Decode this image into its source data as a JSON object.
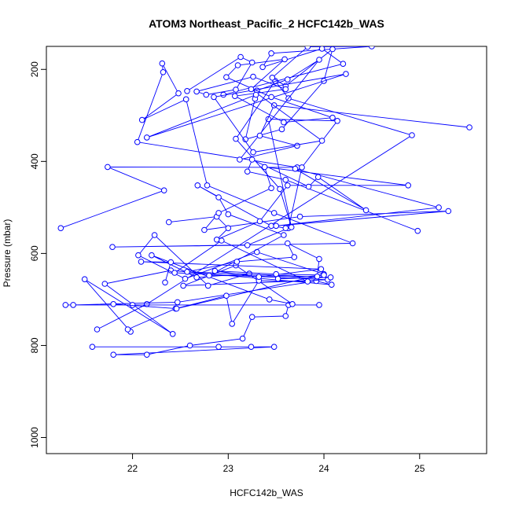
{
  "chart_data": {
    "type": "line",
    "title": "ATOM3 Northeast_Pacific_2 HCFC142b_WAS",
    "xlabel": "HCFC142b_WAS",
    "ylabel": "Pressure (mbar)",
    "xlim": [
      21.1,
      25.7
    ],
    "ylim": [
      1035,
      150
    ],
    "y_reversed": true,
    "x_ticks": [
      22,
      23,
      24,
      25
    ],
    "y_ticks": [
      200,
      400,
      600,
      800,
      1000
    ],
    "grid": false,
    "legend": "none",
    "series_color": "#0000ff",
    "series": [
      {
        "values": [
          [
            21.25,
            545
          ],
          [
            22.33,
            463
          ],
          [
            21.74,
            412
          ],
          [
            23.72,
            413
          ],
          [
            22.05,
            358
          ],
          [
            22.32,
            206
          ],
          [
            22.31,
            187
          ],
          [
            22.48,
            252
          ],
          [
            22.1,
            310
          ],
          [
            22.56,
            265
          ],
          [
            22.78,
            452
          ],
          [
            23.48,
            512
          ],
          [
            24.3,
            578
          ],
          [
            21.79,
            586
          ],
          [
            23.2,
            582
          ],
          [
            23.63,
            545
          ],
          [
            23.77,
            413
          ],
          [
            24.14,
            312
          ],
          [
            23.42,
            308
          ],
          [
            23.66,
            543
          ],
          [
            23.54,
            460
          ],
          [
            23.08,
            351
          ],
          [
            23.49,
            225
          ],
          [
            23.63,
            263
          ],
          [
            24.92,
            343
          ],
          [
            22.15,
            710
          ],
          [
            21.63,
            765
          ]
        ]
      },
      {
        "values": [
          [
            21.58,
            803
          ],
          [
            22.9,
            803
          ],
          [
            23.24,
            803
          ],
          [
            23.48,
            803
          ],
          [
            21.8,
            820
          ],
          [
            22.15,
            820
          ],
          [
            22.6,
            800
          ],
          [
            23.15,
            785
          ],
          [
            23.25,
            738
          ],
          [
            23.6,
            736
          ],
          [
            23.63,
            712
          ],
          [
            23.95,
            712
          ],
          [
            22.0,
            712
          ],
          [
            21.3,
            712
          ],
          [
            21.38,
            712
          ],
          [
            22.47,
            706
          ],
          [
            23.92,
            660
          ],
          [
            24.08,
            668
          ],
          [
            22.4,
            637
          ],
          [
            21.71,
            666
          ],
          [
            22.42,
            775
          ],
          [
            21.5,
            656
          ],
          [
            21.98,
            770
          ]
        ]
      },
      {
        "values": [
          [
            21.95,
            765
          ],
          [
            22.45,
            720
          ],
          [
            22.98,
            692
          ],
          [
            23.04,
            753
          ],
          [
            23.32,
            659
          ],
          [
            23.83,
            661
          ],
          [
            22.93,
            572
          ],
          [
            22.44,
            642
          ],
          [
            24.04,
            657
          ],
          [
            22.53,
            670
          ],
          [
            23.08,
            626
          ],
          [
            23.67,
            710
          ],
          [
            23.43,
            700
          ],
          [
            22.2,
            604
          ],
          [
            22.67,
            652
          ],
          [
            23.22,
            644
          ],
          [
            22.79,
            670
          ],
          [
            22.23,
            560
          ],
          [
            22.06,
            604
          ],
          [
            22.55,
            655
          ],
          [
            23.3,
            597
          ],
          [
            24.0,
            645
          ],
          [
            22.46,
            720
          ],
          [
            21.8,
            710
          ]
        ]
      },
      {
        "values": [
          [
            22.34,
            663
          ],
          [
            22.4,
            619
          ],
          [
            22.09,
            618
          ],
          [
            23.97,
            634
          ],
          [
            23.32,
            651
          ],
          [
            22.86,
            638
          ],
          [
            23.5,
            645
          ],
          [
            24.0,
            647
          ],
          [
            23.52,
            655
          ],
          [
            24.07,
            652
          ],
          [
            22.57,
            640
          ],
          [
            23.09,
            618
          ],
          [
            23.69,
            608
          ],
          [
            23.62,
            578
          ],
          [
            23.95,
            612
          ],
          [
            23.93,
            650
          ],
          [
            22.8,
            648
          ],
          [
            23.58,
            560
          ],
          [
            23.0,
            515
          ],
          [
            22.9,
            478
          ],
          [
            22.68,
            452
          ],
          [
            23.45,
            540
          ],
          [
            23.6,
            545
          ]
        ]
      },
      {
        "values": [
          [
            22.38,
            532
          ],
          [
            22.88,
            520
          ],
          [
            23.0,
            545
          ],
          [
            22.88,
            570
          ],
          [
            23.33,
            530
          ],
          [
            23.62,
            452
          ],
          [
            24.88,
            452
          ],
          [
            23.38,
            412
          ],
          [
            23.45,
            458
          ],
          [
            22.9,
            512
          ],
          [
            22.75,
            549
          ],
          [
            23.75,
            520
          ],
          [
            25.3,
            508
          ],
          [
            23.5,
            540
          ],
          [
            25.2,
            500
          ],
          [
            23.7,
            416
          ],
          [
            24.44,
            506
          ],
          [
            23.94,
            434
          ],
          [
            23.84,
            455
          ],
          [
            23.25,
            396
          ],
          [
            23.2,
            422
          ],
          [
            23.6,
            440
          ],
          [
            24.98,
            551
          ]
        ]
      },
      {
        "values": [
          [
            25.52,
            326
          ],
          [
            23.48,
            278
          ],
          [
            23.33,
            344
          ],
          [
            23.72,
            366
          ],
          [
            23.12,
            396
          ],
          [
            23.95,
            179
          ],
          [
            23.62,
            222
          ],
          [
            23.3,
            246
          ],
          [
            23.28,
            264
          ],
          [
            23.18,
            352
          ],
          [
            23.56,
            330
          ],
          [
            24.0,
            225
          ],
          [
            24.09,
            156
          ],
          [
            23.6,
            236
          ],
          [
            23.46,
            218
          ],
          [
            23.83,
            151
          ],
          [
            24.5,
            150
          ],
          [
            23.45,
            165
          ],
          [
            23.36,
            195
          ],
          [
            23.98,
            155
          ],
          [
            24.2,
            188
          ],
          [
            22.95,
            255
          ]
        ]
      },
      {
        "values": [
          [
            22.57,
            247
          ],
          [
            23.13,
            173
          ],
          [
            23.25,
            185
          ],
          [
            23.08,
            244
          ],
          [
            22.77,
            255
          ],
          [
            22.67,
            248
          ],
          [
            23.26,
            216
          ],
          [
            23.6,
            243
          ],
          [
            23.07,
            258
          ],
          [
            23.58,
            315
          ],
          [
            24.09,
            305
          ],
          [
            23.45,
            260
          ],
          [
            22.98,
            217
          ],
          [
            23.1,
            191
          ],
          [
            23.59,
            178
          ],
          [
            23.24,
            243
          ],
          [
            23.98,
            355
          ],
          [
            23.26,
            380
          ],
          [
            22.85,
            260
          ],
          [
            24.23,
            210
          ],
          [
            22.15,
            348
          ],
          [
            23.29,
            255
          ]
        ]
      }
    ]
  }
}
